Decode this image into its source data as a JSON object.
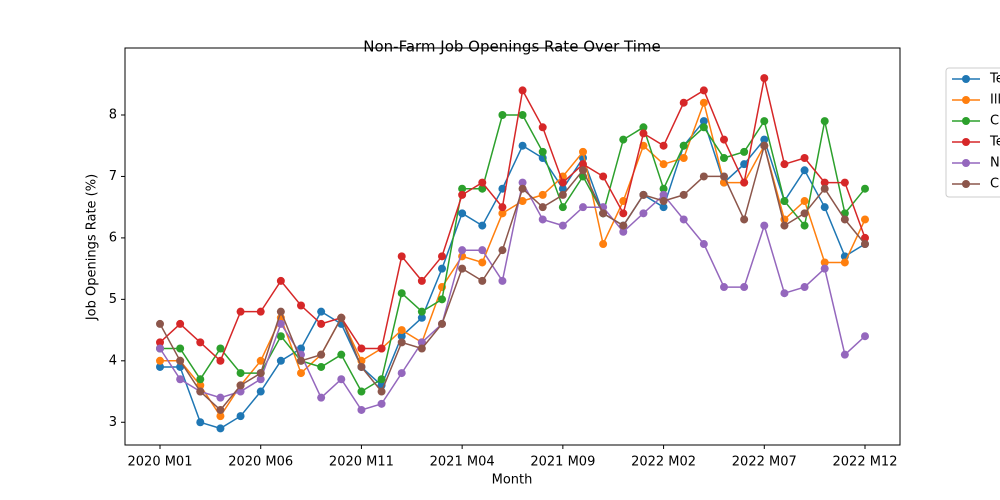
{
  "chart_data": {
    "type": "line",
    "title": "Non-Farm Job Openings Rate Over Time",
    "x_label": "Month",
    "y_label": "Job Openings Rate (%)",
    "categories": [
      "2020 M01",
      null,
      null,
      null,
      null,
      "2020 M06",
      null,
      null,
      null,
      null,
      "2020 M11",
      null,
      null,
      null,
      null,
      "2021 M04",
      null,
      null,
      null,
      null,
      "2021 M09",
      null,
      null,
      null,
      null,
      "2022 M02",
      null,
      null,
      null,
      null,
      "2022 M07",
      null,
      null,
      null,
      null,
      "2022 M12"
    ],
    "ylim": [
      2.63,
      9.09
    ],
    "yticks": [
      3,
      4,
      5,
      6,
      7,
      8
    ],
    "legend": "upper-right-outside",
    "series": [
      {
        "name": "Te",
        "color": "#1f77b4",
        "values": [
          3.9,
          3.9,
          3.0,
          2.9,
          3.1,
          3.5,
          4.0,
          4.2,
          4.8,
          4.6,
          3.9,
          3.6,
          4.4,
          4.7,
          5.5,
          6.4,
          6.2,
          6.8,
          7.5,
          7.3,
          6.8,
          7.3,
          6.4,
          6.2,
          6.7,
          6.5,
          7.5,
          7.9,
          6.9,
          7.2,
          7.6,
          6.6,
          7.1,
          6.5,
          5.7,
          5.9
        ]
      },
      {
        "name": "Ill",
        "color": "#ff7f0e",
        "values": [
          4.0,
          4.0,
          3.6,
          3.1,
          3.6,
          4.0,
          4.7,
          3.8,
          4.1,
          4.7,
          4.0,
          4.2,
          4.5,
          4.3,
          5.2,
          5.7,
          5.6,
          6.4,
          6.6,
          6.7,
          7.0,
          7.4,
          5.9,
          6.6,
          7.5,
          7.2,
          7.3,
          8.2,
          6.9,
          6.9,
          7.5,
          6.3,
          6.6,
          5.6,
          5.6,
          6.3
        ]
      },
      {
        "name": "C",
        "color": "#2ca02c",
        "values": [
          4.2,
          4.2,
          3.7,
          4.2,
          3.8,
          3.8,
          4.4,
          4.0,
          3.9,
          4.1,
          3.5,
          3.7,
          5.1,
          4.8,
          5.0,
          6.8,
          6.8,
          8.0,
          8.0,
          7.4,
          6.5,
          7.0,
          6.4,
          7.6,
          7.8,
          6.8,
          7.5,
          7.8,
          7.3,
          7.4,
          7.9,
          6.6,
          6.2,
          7.9,
          6.4,
          6.8
        ]
      },
      {
        "name": "Te",
        "color": "#d62728",
        "values": [
          4.3,
          4.6,
          4.3,
          4.0,
          4.8,
          4.8,
          5.3,
          4.9,
          4.6,
          4.7,
          4.2,
          4.2,
          5.7,
          5.3,
          5.7,
          6.7,
          6.9,
          6.5,
          8.4,
          7.8,
          6.9,
          7.2,
          7.0,
          6.4,
          7.7,
          7.5,
          8.2,
          8.4,
          7.6,
          6.9,
          8.6,
          7.2,
          7.3,
          6.9,
          6.9,
          6.0
        ]
      },
      {
        "name": "N",
        "color": "#9467bd",
        "values": [
          4.2,
          3.7,
          3.5,
          3.4,
          3.5,
          3.7,
          4.6,
          4.1,
          3.4,
          3.7,
          3.2,
          3.3,
          3.8,
          4.3,
          4.6,
          5.8,
          5.8,
          5.3,
          6.9,
          6.3,
          6.2,
          6.5,
          6.5,
          6.1,
          6.4,
          6.7,
          6.3,
          5.9,
          5.2,
          5.2,
          6.2,
          5.1,
          5.2,
          5.5,
          4.1,
          4.4
        ]
      },
      {
        "name": "C",
        "color": "#8c564b",
        "values": [
          4.6,
          4.0,
          3.5,
          3.2,
          3.6,
          3.8,
          4.8,
          4.0,
          4.1,
          4.7,
          3.9,
          3.5,
          4.3,
          4.2,
          4.6,
          5.5,
          5.3,
          5.8,
          6.8,
          6.5,
          6.7,
          7.1,
          6.4,
          6.2,
          6.7,
          6.6,
          6.7,
          7.0,
          7.0,
          6.3,
          7.5,
          6.2,
          6.4,
          6.8,
          6.3,
          5.9
        ]
      }
    ]
  }
}
